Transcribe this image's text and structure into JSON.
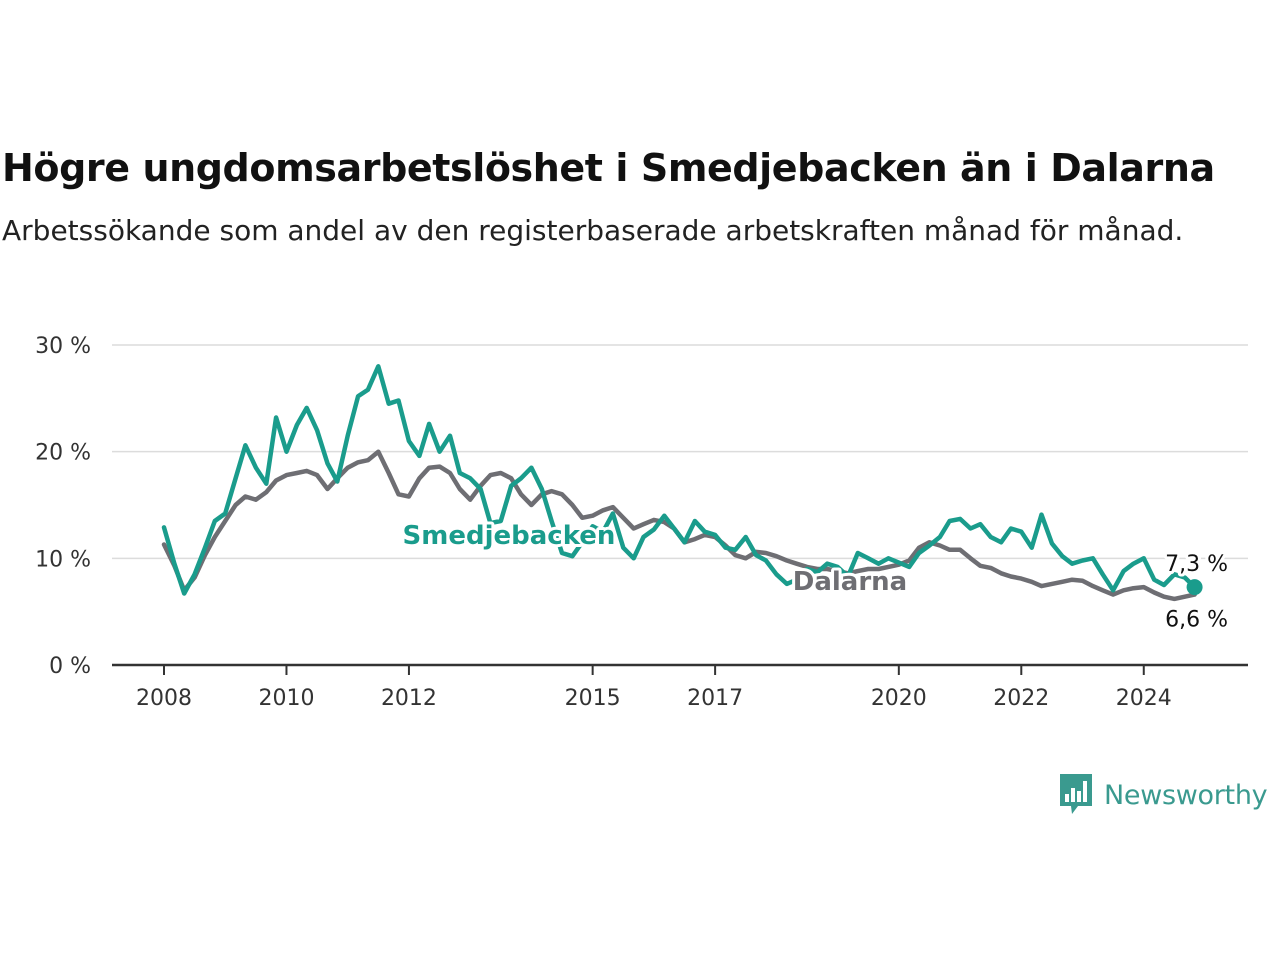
{
  "header": {
    "title": "Högre ungdomsarbetslöshet i Smedjebacken än i Dalarna",
    "subtitle": "Arbetssökande som andel av den registerbaserade arbetskraften månad för månad."
  },
  "brand": {
    "name": "Newsworthy",
    "color": "#3a9a8f",
    "icon": "newsworthy-chart-icon"
  },
  "chart_data": {
    "type": "line",
    "title": "Högre ungdomsarbetslöshet i Smedjebacken än i Dalarna",
    "xlabel": "",
    "ylabel": "",
    "x_range": [
      2008,
      2025.0
    ],
    "ylim": [
      0,
      30
    ],
    "y_ticks": [
      0,
      10,
      20,
      30
    ],
    "y_tick_labels": [
      "0 %",
      "10 %",
      "20 %",
      "30 %"
    ],
    "x_ticks": [
      2008,
      2010,
      2012,
      2015,
      2017,
      2020,
      2022,
      2024
    ],
    "x_tick_labels": [
      "2008",
      "2010",
      "2012",
      "2015",
      "2017",
      "2020",
      "2022",
      "2024"
    ],
    "grid": true,
    "legend": "inline labels",
    "series": [
      {
        "name": "Smedjebacken",
        "color": "#1a9c8c",
        "end_label": "7,3 %",
        "points": [
          [
            2008.0,
            12.9
          ],
          [
            2008.17,
            9.5
          ],
          [
            2008.33,
            6.7
          ],
          [
            2008.5,
            8.5
          ],
          [
            2008.67,
            11.0
          ],
          [
            2008.83,
            13.5
          ],
          [
            2009.0,
            14.2
          ],
          [
            2009.17,
            17.5
          ],
          [
            2009.33,
            20.6
          ],
          [
            2009.5,
            18.5
          ],
          [
            2009.67,
            17.0
          ],
          [
            2009.83,
            23.2
          ],
          [
            2010.0,
            20.0
          ],
          [
            2010.17,
            22.5
          ],
          [
            2010.33,
            24.1
          ],
          [
            2010.5,
            22.0
          ],
          [
            2010.67,
            18.9
          ],
          [
            2010.83,
            17.2
          ],
          [
            2011.0,
            21.5
          ],
          [
            2011.17,
            25.2
          ],
          [
            2011.33,
            25.8
          ],
          [
            2011.5,
            28.0
          ],
          [
            2011.67,
            24.5
          ],
          [
            2011.83,
            24.8
          ],
          [
            2012.0,
            21.0
          ],
          [
            2012.17,
            19.6
          ],
          [
            2012.33,
            22.6
          ],
          [
            2012.5,
            20.0
          ],
          [
            2012.67,
            21.5
          ],
          [
            2012.83,
            18.0
          ],
          [
            2013.0,
            17.5
          ],
          [
            2013.17,
            16.5
          ],
          [
            2013.33,
            13.3
          ],
          [
            2013.5,
            13.5
          ],
          [
            2013.67,
            16.8
          ],
          [
            2013.83,
            17.5
          ],
          [
            2014.0,
            18.5
          ],
          [
            2014.17,
            16.5
          ],
          [
            2014.33,
            13.5
          ],
          [
            2014.5,
            10.5
          ],
          [
            2014.67,
            10.2
          ],
          [
            2014.83,
            11.5
          ],
          [
            2015.0,
            13.0
          ],
          [
            2015.17,
            12.5
          ],
          [
            2015.33,
            14.2
          ],
          [
            2015.5,
            11.0
          ],
          [
            2015.67,
            10.0
          ],
          [
            2015.83,
            12.0
          ],
          [
            2016.0,
            12.7
          ],
          [
            2016.17,
            14.0
          ],
          [
            2016.33,
            12.8
          ],
          [
            2016.5,
            11.5
          ],
          [
            2016.67,
            13.5
          ],
          [
            2016.83,
            12.5
          ],
          [
            2017.0,
            12.2
          ],
          [
            2017.17,
            11.0
          ],
          [
            2017.33,
            10.8
          ],
          [
            2017.5,
            12.0
          ],
          [
            2017.67,
            10.3
          ],
          [
            2017.83,
            9.8
          ],
          [
            2018.0,
            8.5
          ],
          [
            2018.17,
            7.6
          ],
          [
            2018.33,
            8.0
          ],
          [
            2018.5,
            9.0
          ],
          [
            2018.67,
            8.7
          ],
          [
            2018.83,
            9.5
          ],
          [
            2019.0,
            9.2
          ],
          [
            2019.17,
            8.3
          ],
          [
            2019.33,
            10.5
          ],
          [
            2019.5,
            10.0
          ],
          [
            2019.67,
            9.5
          ],
          [
            2019.83,
            10.0
          ],
          [
            2020.0,
            9.6
          ],
          [
            2020.17,
            9.2
          ],
          [
            2020.33,
            10.5
          ],
          [
            2020.5,
            11.2
          ],
          [
            2020.67,
            12.0
          ],
          [
            2020.83,
            13.5
          ],
          [
            2021.0,
            13.7
          ],
          [
            2021.17,
            12.8
          ],
          [
            2021.33,
            13.2
          ],
          [
            2021.5,
            12.0
          ],
          [
            2021.67,
            11.5
          ],
          [
            2021.83,
            12.8
          ],
          [
            2022.0,
            12.5
          ],
          [
            2022.17,
            11.0
          ],
          [
            2022.33,
            14.1
          ],
          [
            2022.5,
            11.4
          ],
          [
            2022.67,
            10.2
          ],
          [
            2022.83,
            9.5
          ],
          [
            2023.0,
            9.8
          ],
          [
            2023.17,
            10.0
          ],
          [
            2023.33,
            8.5
          ],
          [
            2023.5,
            7.0
          ],
          [
            2023.67,
            8.8
          ],
          [
            2023.83,
            9.5
          ],
          [
            2024.0,
            10.0
          ],
          [
            2024.17,
            8.0
          ],
          [
            2024.33,
            7.5
          ],
          [
            2024.5,
            8.5
          ],
          [
            2024.67,
            8.2
          ],
          [
            2024.83,
            7.3
          ]
        ]
      },
      {
        "name": "Dalarna",
        "color": "#6e6e73",
        "end_label": "6,6 %",
        "points": [
          [
            2008.0,
            11.3
          ],
          [
            2008.17,
            9.3
          ],
          [
            2008.33,
            7.0
          ],
          [
            2008.5,
            8.2
          ],
          [
            2008.67,
            10.3
          ],
          [
            2008.83,
            12.0
          ],
          [
            2009.0,
            13.5
          ],
          [
            2009.17,
            15.0
          ],
          [
            2009.33,
            15.8
          ],
          [
            2009.5,
            15.5
          ],
          [
            2009.67,
            16.2
          ],
          [
            2009.83,
            17.3
          ],
          [
            2010.0,
            17.8
          ],
          [
            2010.17,
            18.0
          ],
          [
            2010.33,
            18.2
          ],
          [
            2010.5,
            17.8
          ],
          [
            2010.67,
            16.5
          ],
          [
            2010.83,
            17.5
          ],
          [
            2011.0,
            18.5
          ],
          [
            2011.17,
            19.0
          ],
          [
            2011.33,
            19.2
          ],
          [
            2011.5,
            20.0
          ],
          [
            2011.67,
            18.0
          ],
          [
            2011.83,
            16.0
          ],
          [
            2012.0,
            15.8
          ],
          [
            2012.17,
            17.5
          ],
          [
            2012.33,
            18.5
          ],
          [
            2012.5,
            18.6
          ],
          [
            2012.67,
            18.0
          ],
          [
            2012.83,
            16.5
          ],
          [
            2013.0,
            15.5
          ],
          [
            2013.17,
            16.8
          ],
          [
            2013.33,
            17.8
          ],
          [
            2013.5,
            18.0
          ],
          [
            2013.67,
            17.5
          ],
          [
            2013.83,
            16.0
          ],
          [
            2014.0,
            15.0
          ],
          [
            2014.17,
            16.0
          ],
          [
            2014.33,
            16.3
          ],
          [
            2014.5,
            16.0
          ],
          [
            2014.67,
            15.0
          ],
          [
            2014.83,
            13.8
          ],
          [
            2015.0,
            14.0
          ],
          [
            2015.17,
            14.5
          ],
          [
            2015.33,
            14.8
          ],
          [
            2015.5,
            13.8
          ],
          [
            2015.67,
            12.8
          ],
          [
            2015.83,
            13.2
          ],
          [
            2016.0,
            13.6
          ],
          [
            2016.17,
            13.4
          ],
          [
            2016.33,
            12.8
          ],
          [
            2016.5,
            11.5
          ],
          [
            2016.67,
            11.8
          ],
          [
            2016.83,
            12.2
          ],
          [
            2017.0,
            12.0
          ],
          [
            2017.17,
            11.2
          ],
          [
            2017.33,
            10.3
          ],
          [
            2017.5,
            10.0
          ],
          [
            2017.67,
            10.6
          ],
          [
            2017.83,
            10.5
          ],
          [
            2018.0,
            10.2
          ],
          [
            2018.17,
            9.8
          ],
          [
            2018.33,
            9.5
          ],
          [
            2018.5,
            9.2
          ],
          [
            2018.67,
            9.0
          ],
          [
            2018.83,
            9.0
          ],
          [
            2019.0,
            8.8
          ],
          [
            2019.17,
            8.6
          ],
          [
            2019.33,
            8.8
          ],
          [
            2019.5,
            9.0
          ],
          [
            2019.67,
            9.0
          ],
          [
            2019.83,
            9.2
          ],
          [
            2020.0,
            9.4
          ],
          [
            2020.17,
            9.8
          ],
          [
            2020.33,
            11.0
          ],
          [
            2020.5,
            11.5
          ],
          [
            2020.67,
            11.2
          ],
          [
            2020.83,
            10.8
          ],
          [
            2021.0,
            10.8
          ],
          [
            2021.17,
            10.0
          ],
          [
            2021.33,
            9.3
          ],
          [
            2021.5,
            9.1
          ],
          [
            2021.67,
            8.6
          ],
          [
            2021.83,
            8.3
          ],
          [
            2022.0,
            8.1
          ],
          [
            2022.17,
            7.8
          ],
          [
            2022.33,
            7.4
          ],
          [
            2022.5,
            7.6
          ],
          [
            2022.67,
            7.8
          ],
          [
            2022.83,
            8.0
          ],
          [
            2023.0,
            7.9
          ],
          [
            2023.17,
            7.4
          ],
          [
            2023.33,
            7.0
          ],
          [
            2023.5,
            6.6
          ],
          [
            2023.67,
            7.0
          ],
          [
            2023.83,
            7.2
          ],
          [
            2024.0,
            7.3
          ],
          [
            2024.17,
            6.8
          ],
          [
            2024.33,
            6.4
          ],
          [
            2024.5,
            6.2
          ],
          [
            2024.67,
            6.4
          ],
          [
            2024.83,
            6.6
          ]
        ]
      }
    ]
  }
}
